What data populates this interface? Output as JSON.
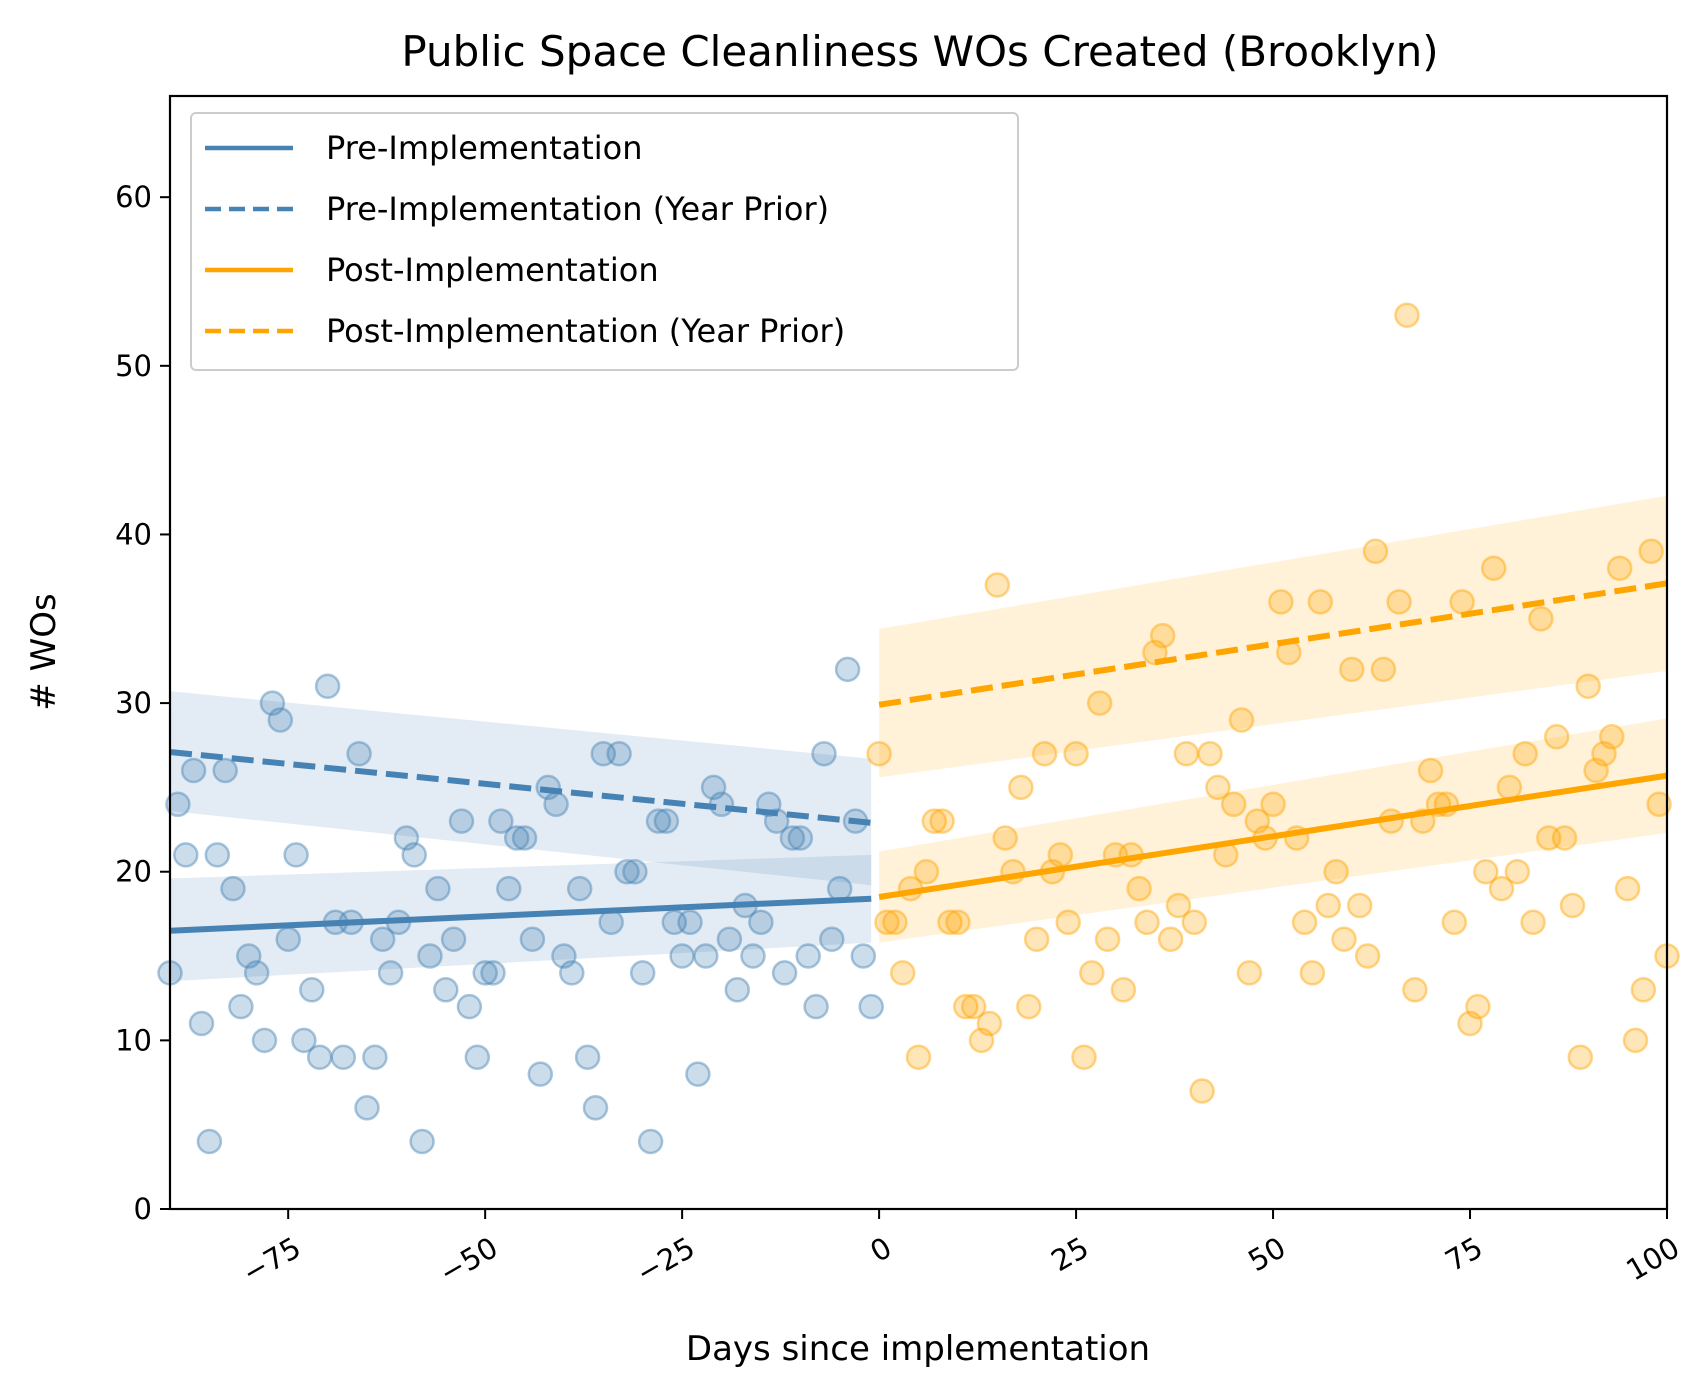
{
  "chart_data": {
    "type": "scatter",
    "title": "Public Space Cleanliness WOs Created (Brooklyn)",
    "xlabel": "Days since implementation",
    "ylabel": "# WOs",
    "xlim": [
      -90,
      100
    ],
    "ylim": [
      0,
      66
    ],
    "x_ticks": [
      -75,
      -50,
      -25,
      0,
      25,
      50,
      75,
      100
    ],
    "x_tick_labels": [
      "−75",
      "−50",
      "−25",
      "0",
      "25",
      "50",
      "75",
      "100"
    ],
    "y_ticks": [
      0,
      10,
      20,
      30,
      40,
      50,
      60
    ],
    "y_tick_labels": [
      "0",
      "10",
      "20",
      "30",
      "40",
      "50",
      "60"
    ],
    "grid": false,
    "legend_position": "top-left",
    "colors": {
      "pre": "#4682b4",
      "post": "#ffa500"
    },
    "legend": [
      {
        "label": "Pre-Implementation",
        "color": "#4682b4",
        "style": "solid"
      },
      {
        "label": "Pre-Implementation (Year Prior)",
        "color": "#4682b4",
        "style": "dashed"
      },
      {
        "label": "Post-Implementation",
        "color": "#ffa500",
        "style": "solid"
      },
      {
        "label": "Post-Implementation (Year Prior)",
        "color": "#ffa500",
        "style": "dashed"
      }
    ],
    "scatter": [
      {
        "group": "pre",
        "color": "#4682b4",
        "points": [
          [
            -90,
            14
          ],
          [
            -89,
            24
          ],
          [
            -88,
            21
          ],
          [
            -87,
            26
          ],
          [
            -86,
            11
          ],
          [
            -85,
            4
          ],
          [
            -84,
            21
          ],
          [
            -83,
            26
          ],
          [
            -82,
            19
          ],
          [
            -81,
            12
          ],
          [
            -80,
            15
          ],
          [
            -79,
            14
          ],
          [
            -78,
            10
          ],
          [
            -77,
            30
          ],
          [
            -76,
            29
          ],
          [
            -75,
            16
          ],
          [
            -74,
            21
          ],
          [
            -73,
            10
          ],
          [
            -72,
            13
          ],
          [
            -71,
            9
          ],
          [
            -70,
            31
          ],
          [
            -69,
            17
          ],
          [
            -68,
            9
          ],
          [
            -67,
            17
          ],
          [
            -66,
            27
          ],
          [
            -65,
            6
          ],
          [
            -64,
            9
          ],
          [
            -63,
            16
          ],
          [
            -62,
            14
          ],
          [
            -61,
            17
          ],
          [
            -60,
            22
          ],
          [
            -59,
            21
          ],
          [
            -58,
            4
          ],
          [
            -57,
            15
          ],
          [
            -56,
            19
          ],
          [
            -55,
            13
          ],
          [
            -54,
            16
          ],
          [
            -53,
            23
          ],
          [
            -52,
            12
          ],
          [
            -51,
            9
          ],
          [
            -50,
            14
          ],
          [
            -49,
            14
          ],
          [
            -48,
            23
          ],
          [
            -47,
            19
          ],
          [
            -46,
            22
          ],
          [
            -45,
            22
          ],
          [
            -44,
            16
          ],
          [
            -43,
            8
          ],
          [
            -42,
            25
          ],
          [
            -41,
            24
          ],
          [
            -40,
            15
          ],
          [
            -39,
            14
          ],
          [
            -38,
            19
          ],
          [
            -37,
            9
          ],
          [
            -36,
            6
          ],
          [
            -35,
            27
          ],
          [
            -34,
            17
          ],
          [
            -33,
            27
          ],
          [
            -32,
            20
          ],
          [
            -31,
            20
          ],
          [
            -30,
            14
          ],
          [
            -29,
            4
          ],
          [
            -28,
            23
          ],
          [
            -27,
            23
          ],
          [
            -26,
            17
          ],
          [
            -25,
            15
          ],
          [
            -24,
            17
          ],
          [
            -23,
            8
          ],
          [
            -22,
            15
          ],
          [
            -21,
            25
          ],
          [
            -20,
            24
          ],
          [
            -19,
            16
          ],
          [
            -18,
            13
          ],
          [
            -17,
            18
          ],
          [
            -16,
            15
          ],
          [
            -15,
            17
          ],
          [
            -14,
            24
          ],
          [
            -13,
            23
          ],
          [
            -12,
            14
          ],
          [
            -11,
            22
          ],
          [
            -10,
            22
          ],
          [
            -9,
            15
          ],
          [
            -8,
            12
          ],
          [
            -7,
            27
          ],
          [
            -6,
            16
          ],
          [
            -5,
            19
          ],
          [
            -4,
            32
          ],
          [
            -3,
            23
          ],
          [
            -2,
            15
          ],
          [
            -1,
            12
          ]
        ]
      },
      {
        "group": "post",
        "color": "#ffa500",
        "points": [
          [
            0,
            27
          ],
          [
            1,
            17
          ],
          [
            2,
            17
          ],
          [
            3,
            14
          ],
          [
            4,
            19
          ],
          [
            5,
            9
          ],
          [
            6,
            20
          ],
          [
            7,
            23
          ],
          [
            8,
            23
          ],
          [
            9,
            17
          ],
          [
            10,
            17
          ],
          [
            11,
            12
          ],
          [
            12,
            12
          ],
          [
            13,
            10
          ],
          [
            14,
            11
          ],
          [
            15,
            37
          ],
          [
            16,
            22
          ],
          [
            17,
            20
          ],
          [
            18,
            25
          ],
          [
            19,
            12
          ],
          [
            20,
            16
          ],
          [
            21,
            27
          ],
          [
            22,
            20
          ],
          [
            23,
            21
          ],
          [
            24,
            17
          ],
          [
            25,
            27
          ],
          [
            26,
            9
          ],
          [
            27,
            14
          ],
          [
            28,
            30
          ],
          [
            29,
            16
          ],
          [
            30,
            21
          ],
          [
            31,
            13
          ],
          [
            32,
            21
          ],
          [
            33,
            19
          ],
          [
            34,
            17
          ],
          [
            35,
            33
          ],
          [
            36,
            34
          ],
          [
            37,
            16
          ],
          [
            38,
            18
          ],
          [
            39,
            27
          ],
          [
            40,
            17
          ],
          [
            41,
            7
          ],
          [
            42,
            27
          ],
          [
            43,
            25
          ],
          [
            44,
            21
          ],
          [
            45,
            24
          ],
          [
            46,
            29
          ],
          [
            47,
            14
          ],
          [
            48,
            23
          ],
          [
            49,
            22
          ],
          [
            50,
            24
          ],
          [
            51,
            36
          ],
          [
            52,
            33
          ],
          [
            53,
            22
          ],
          [
            54,
            17
          ],
          [
            55,
            14
          ],
          [
            56,
            36
          ],
          [
            57,
            18
          ],
          [
            58,
            20
          ],
          [
            59,
            16
          ],
          [
            60,
            32
          ],
          [
            61,
            18
          ],
          [
            62,
            15
          ],
          [
            63,
            39
          ],
          [
            64,
            32
          ],
          [
            65,
            23
          ],
          [
            66,
            36
          ],
          [
            67,
            53
          ],
          [
            68,
            13
          ],
          [
            69,
            23
          ],
          [
            70,
            26
          ],
          [
            71,
            24
          ],
          [
            72,
            24
          ],
          [
            73,
            17
          ],
          [
            74,
            36
          ],
          [
            75,
            11
          ],
          [
            76,
            12
          ],
          [
            77,
            20
          ],
          [
            78,
            38
          ],
          [
            79,
            19
          ],
          [
            80,
            25
          ],
          [
            81,
            20
          ],
          [
            82,
            27
          ],
          [
            83,
            17
          ],
          [
            84,
            35
          ],
          [
            85,
            22
          ],
          [
            86,
            28
          ],
          [
            87,
            22
          ],
          [
            88,
            18
          ],
          [
            89,
            9
          ],
          [
            90,
            31
          ],
          [
            91,
            26
          ],
          [
            92,
            27
          ],
          [
            93,
            28
          ],
          [
            94,
            38
          ],
          [
            95,
            19
          ],
          [
            96,
            10
          ],
          [
            97,
            13
          ],
          [
            98,
            39
          ],
          [
            99,
            24
          ],
          [
            100,
            15
          ]
        ]
      }
    ],
    "series": [
      {
        "name": "Pre-Implementation",
        "color": "#4682b4",
        "style": "solid",
        "x": [
          -90,
          -1
        ],
        "y": [
          16.5,
          18.4
        ],
        "ci_lower": [
          13.5,
          15.8
        ],
        "ci_upper": [
          19.6,
          21.0
        ]
      },
      {
        "name": "Pre-Implementation (Year Prior)",
        "color": "#4682b4",
        "style": "dashed",
        "x": [
          -90,
          -1
        ],
        "y": [
          27.1,
          22.9
        ],
        "ci_lower": [
          23.6,
          19.2
        ],
        "ci_upper": [
          30.7,
          26.7
        ]
      },
      {
        "name": "Post-Implementation",
        "color": "#ffa500",
        "style": "solid",
        "x": [
          0,
          100
        ],
        "y": [
          18.5,
          25.7
        ],
        "ci_lower": [
          15.8,
          22.3
        ],
        "ci_upper": [
          21.2,
          29.1
        ]
      },
      {
        "name": "Post-Implementation (Year Prior)",
        "color": "#ffa500",
        "style": "dashed",
        "x": [
          0,
          100
        ],
        "y": [
          29.9,
          37.1
        ],
        "ci_lower": [
          25.6,
          31.9
        ],
        "ci_upper": [
          34.4,
          42.3
        ]
      }
    ]
  }
}
